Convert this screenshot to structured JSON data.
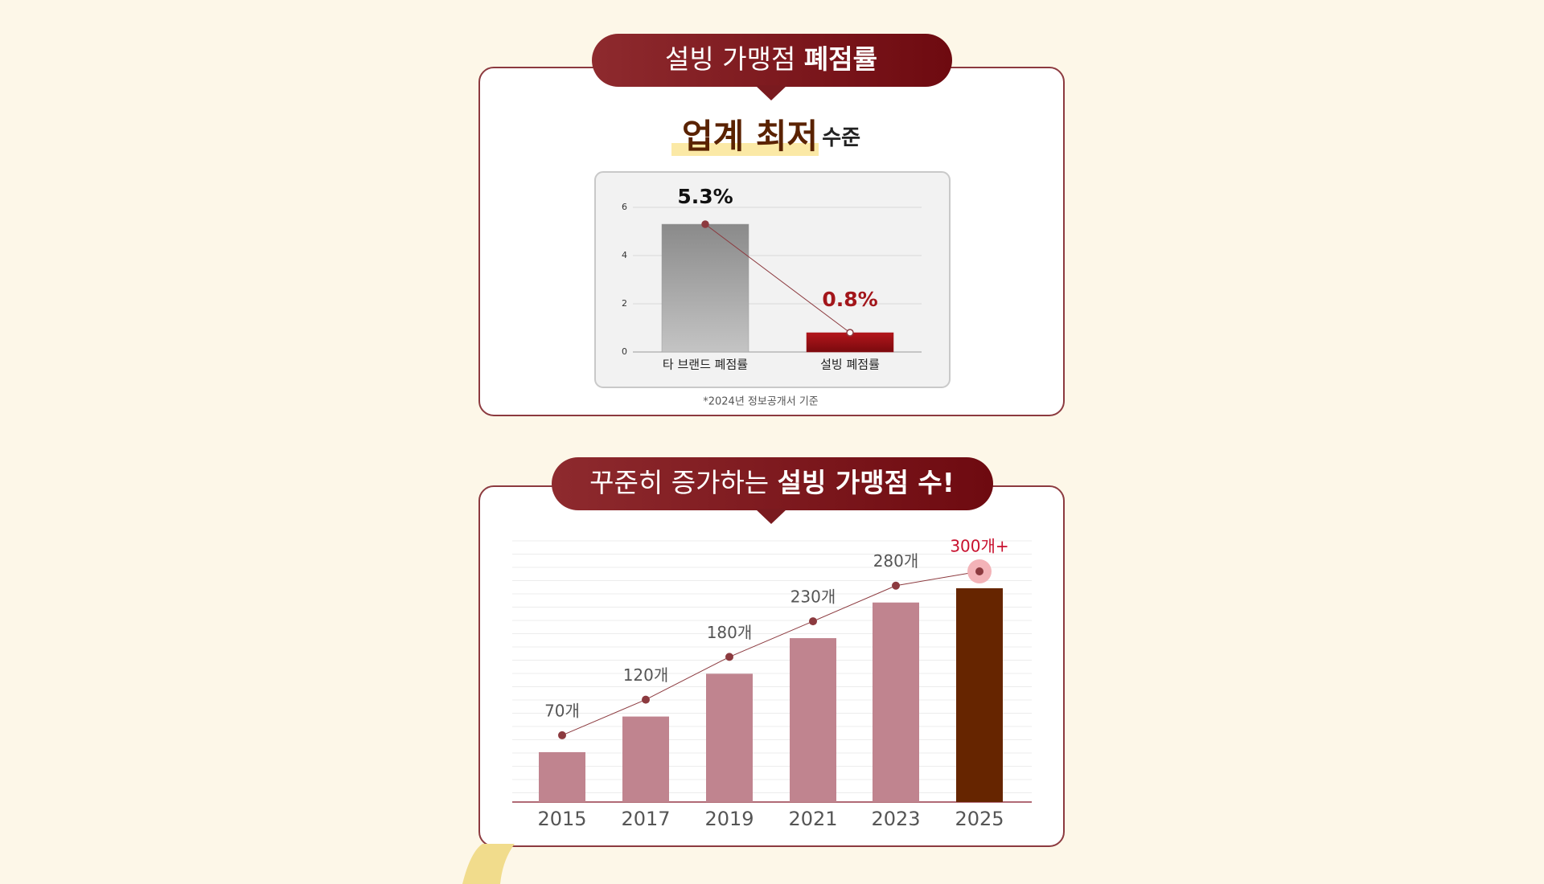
{
  "chart_data": [
    {
      "type": "bar",
      "title": "설빙 가맹점",
      "title_emphasis": "폐점률",
      "subtitle": "업계 최저",
      "subtitle_suffix": "수준",
      "categories": [
        "타 브랜드 폐점률",
        "설빙 폐점률"
      ],
      "values": [
        5.3,
        0.8
      ],
      "value_labels": [
        "5.3%",
        "0.8%"
      ],
      "colors": [
        "#9a9a9a",
        "#a3161b"
      ],
      "label_colors": [
        "#111111",
        "#a3161b"
      ],
      "line_color": "#8c3a3f",
      "ylim": [
        0,
        6
      ],
      "yticks": [
        0,
        2,
        4,
        6
      ],
      "grid": true,
      "note": "*2024년 정보공개서 기준"
    },
    {
      "type": "bar",
      "title": "꾸준히 증가하는",
      "title_emphasis": "설빙 가맹점 수!",
      "categories": [
        "2015",
        "2017",
        "2019",
        "2021",
        "2023",
        "2025"
      ],
      "values": [
        70,
        120,
        180,
        230,
        280,
        300
      ],
      "value_labels": [
        "70개",
        "120개",
        "180개",
        "230개",
        "280개",
        "300개+"
      ],
      "colors": [
        "#c0848f",
        "#c0848f",
        "#c0848f",
        "#c0848f",
        "#c0848f",
        "#662500"
      ],
      "label_colors": [
        "#555555",
        "#555555",
        "#555555",
        "#555555",
        "#555555",
        "#c8102e"
      ],
      "line_color": "#8c3a3f"
    }
  ]
}
